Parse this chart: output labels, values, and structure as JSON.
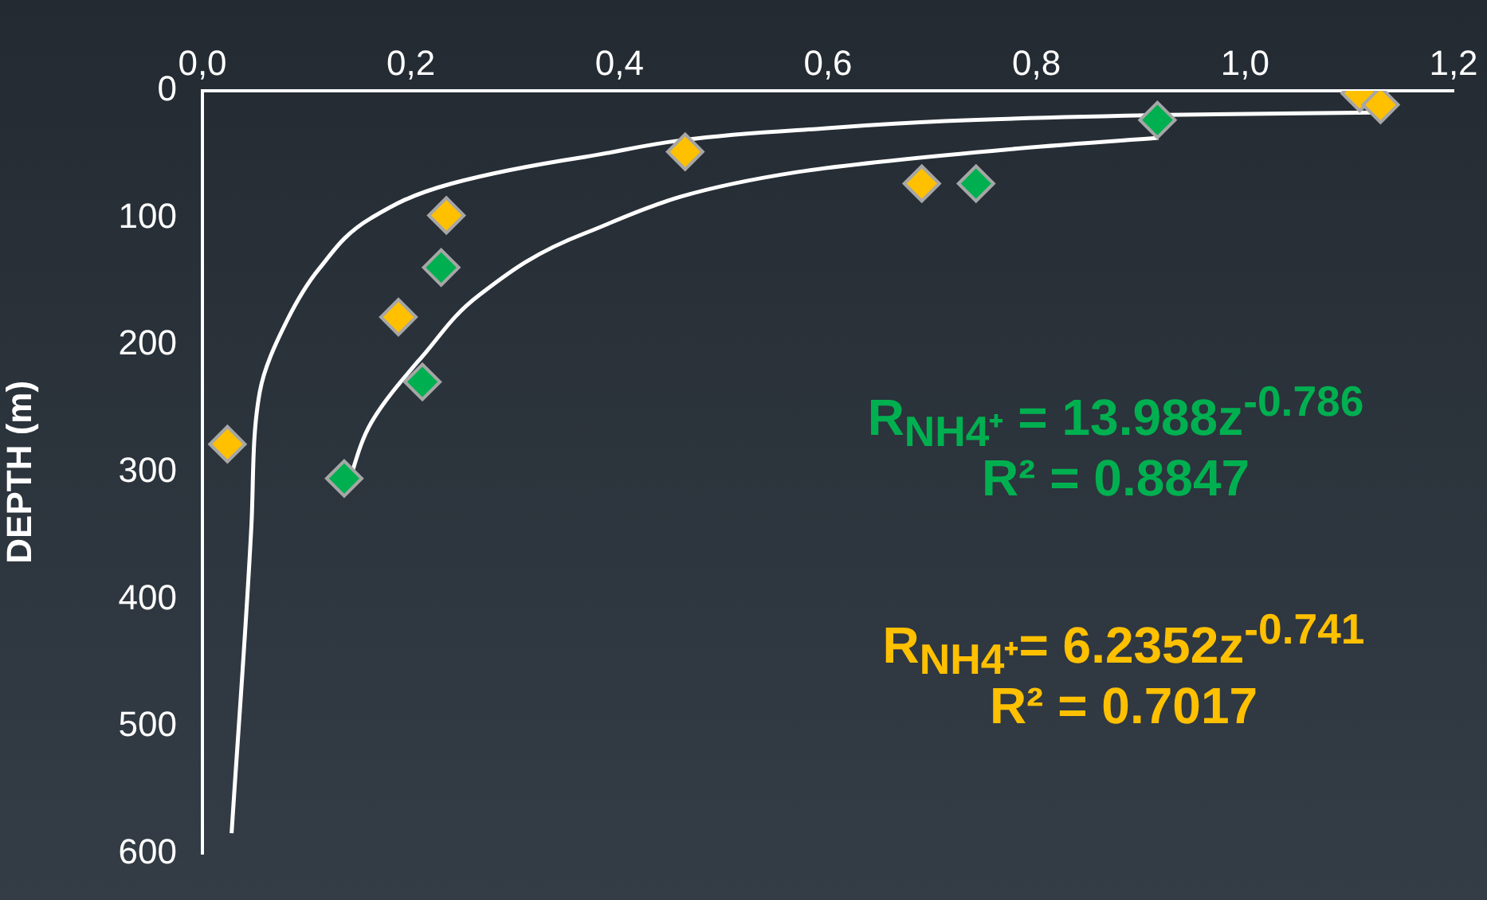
{
  "chart_data": {
    "type": "scatter",
    "ylabel": "DEPTH (m)",
    "xlim": [
      0,
      1.2
    ],
    "ylim": [
      600,
      0
    ],
    "xticks": [
      {
        "value": 0,
        "label": "0,0"
      },
      {
        "value": 0.2,
        "label": "0,2"
      },
      {
        "value": 0.4,
        "label": "0,4"
      },
      {
        "value": 0.6,
        "label": "0,6"
      },
      {
        "value": 0.8,
        "label": "0,8"
      },
      {
        "value": 1,
        "label": "1,0"
      },
      {
        "value": 1.2,
        "label": "1,2"
      }
    ],
    "yticks": [
      0,
      100,
      200,
      300,
      400,
      500,
      600
    ],
    "grid": false,
    "legend": false,
    "marker": "diamond",
    "series": [
      {
        "color": "#00b050",
        "x": [
          0.916,
          0.742,
          0.229,
          0.211,
          0.136
        ],
        "values": [
          23,
          73,
          139,
          229,
          305
        ]
      },
      {
        "color": "#ffc000",
        "x": [
          1.11,
          1.13,
          0.463,
          0.69,
          0.234,
          0.188,
          0.024
        ],
        "values": [
          2,
          11,
          48,
          73,
          98,
          178,
          278
        ]
      },
      {
        "type": "line",
        "marker": "none",
        "color": "#ffffff",
        "x": [
          0.138,
          0.162,
          0.214,
          0.265,
          0.367,
          0.57,
          0.774,
          0.917
        ],
        "values": [
          314,
          261,
          206,
          161,
          112,
          64,
          46,
          37
        ]
      },
      {
        "type": "line",
        "marker": "none",
        "color": "#ffffff",
        "x": [
          0.028,
          0.047,
          0.055,
          0.081,
          0.112,
          0.162,
          0.239,
          0.367,
          0.57,
          0.927,
          1.125
        ],
        "values": [
          584,
          342,
          237,
          181,
          140,
          100,
          73,
          52,
          31,
          19,
          17
        ]
      }
    ],
    "annotations": [
      "R$_{NH4⁺}$ = 13.988z$^{-0.786}$",
      "R² = 0.8847",
      "R$_{NH4⁺}$= 6.2352z$^{-0.741}$",
      "R² = 0.7017"
    ]
  }
}
